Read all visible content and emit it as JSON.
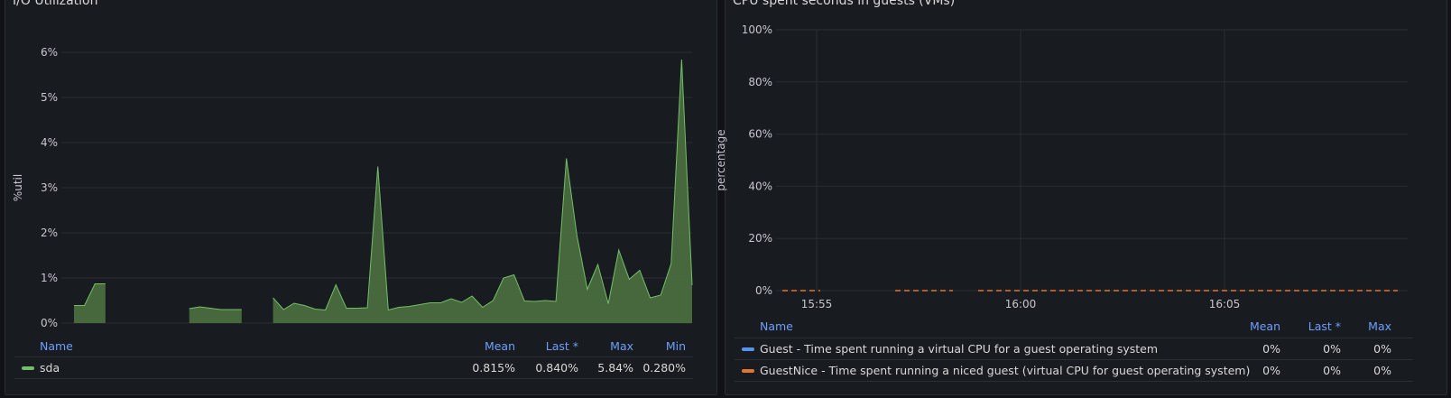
{
  "panels": {
    "left": {
      "title": "I/O Utilization"
    },
    "right": {
      "title": "CPU spent seconds in guests (VMs)"
    }
  },
  "colors": {
    "sda": "#73bf69",
    "sda_fill": "#4a6d3f",
    "guest": "#5794f2",
    "guestnice": "#e0752d",
    "grid": "#2a2d33",
    "legend_header": "#6e9fff"
  },
  "legend_left": {
    "headers": {
      "name": "Name",
      "mean": "Mean",
      "last": "Last *",
      "max": "Max",
      "min": "Min"
    },
    "rows": [
      {
        "name": "sda",
        "mean": "0.815%",
        "last": "0.840%",
        "max": "5.84%",
        "min": "0.280%"
      }
    ]
  },
  "legend_right": {
    "headers": {
      "name": "Name",
      "mean": "Mean",
      "last": "Last *",
      "max": "Max"
    },
    "rows": [
      {
        "name": "Guest - Time spent running a virtual CPU for a guest operating system",
        "mean": "0%",
        "last": "0%",
        "max": "0%"
      },
      {
        "name": "GuestNice - Time spent running a niced guest (virtual CPU for guest operating system)",
        "mean": "0%",
        "last": "0%",
        "max": "0%"
      }
    ]
  },
  "chart_data": [
    {
      "type": "area",
      "title": "I/O Utilization",
      "ylabel": "%util",
      "xlabel": "",
      "ylim": [
        0,
        6
      ],
      "yticks": [
        "0%",
        "1%",
        "2%",
        "3%",
        "4%",
        "5%",
        "6%"
      ],
      "grid": true,
      "legend_position": "bottom",
      "series": [
        {
          "name": "sda",
          "segments": [
            [
              [
                0,
                0.39
              ],
              [
                1,
                0.39
              ],
              [
                2,
                0.87
              ],
              [
                3,
                0.87
              ]
            ],
            [
              [
                11,
                0.32
              ],
              [
                12,
                0.36
              ],
              [
                13,
                0.33
              ],
              [
                14,
                0.3
              ],
              [
                15,
                0.3
              ],
              [
                16,
                0.3
              ]
            ],
            [
              [
                19,
                0.56
              ],
              [
                20,
                0.3
              ],
              [
                21,
                0.44
              ],
              [
                22,
                0.39
              ],
              [
                23,
                0.31
              ],
              [
                24,
                0.29
              ],
              [
                25,
                0.85
              ],
              [
                26,
                0.33
              ],
              [
                27,
                0.33
              ],
              [
                28,
                0.34
              ],
              [
                29,
                3.47
              ],
              [
                30,
                0.29
              ],
              [
                31,
                0.35
              ],
              [
                32,
                0.37
              ],
              [
                33,
                0.41
              ],
              [
                34,
                0.45
              ],
              [
                35,
                0.45
              ],
              [
                36,
                0.54
              ],
              [
                37,
                0.46
              ],
              [
                38,
                0.6
              ],
              [
                39,
                0.35
              ],
              [
                40,
                0.5
              ],
              [
                41,
                1.0
              ],
              [
                42,
                1.07
              ],
              [
                43,
                0.49
              ],
              [
                44,
                0.48
              ],
              [
                45,
                0.5
              ],
              [
                46,
                0.48
              ],
              [
                47,
                3.65
              ],
              [
                48,
                1.95
              ],
              [
                49,
                0.75
              ],
              [
                50,
                1.3
              ],
              [
                51,
                0.43
              ],
              [
                52,
                1.62
              ],
              [
                53,
                0.97
              ],
              [
                54,
                1.17
              ],
              [
                55,
                0.56
              ],
              [
                56,
                0.62
              ],
              [
                57,
                1.32
              ],
              [
                58,
                5.84
              ],
              [
                59,
                0.84
              ]
            ]
          ]
        }
      ]
    },
    {
      "type": "line",
      "title": "CPU spent seconds in guests (VMs)",
      "ylabel": "percentage",
      "xlabel": "",
      "xticks": [
        "15:55",
        "16:00",
        "16:05"
      ],
      "ylim": [
        0,
        100
      ],
      "yticks": [
        "0%",
        "20%",
        "40%",
        "60%",
        "80%",
        "100%"
      ],
      "grid": true,
      "legend_position": "bottom",
      "series": [
        {
          "name": "Guest - Time spent running a virtual CPU for a guest operating system",
          "values": [
            0
          ]
        },
        {
          "name": "GuestNice - Time spent running a niced guest (virtual CPU for guest operating system)",
          "values": [
            0
          ]
        }
      ]
    }
  ]
}
